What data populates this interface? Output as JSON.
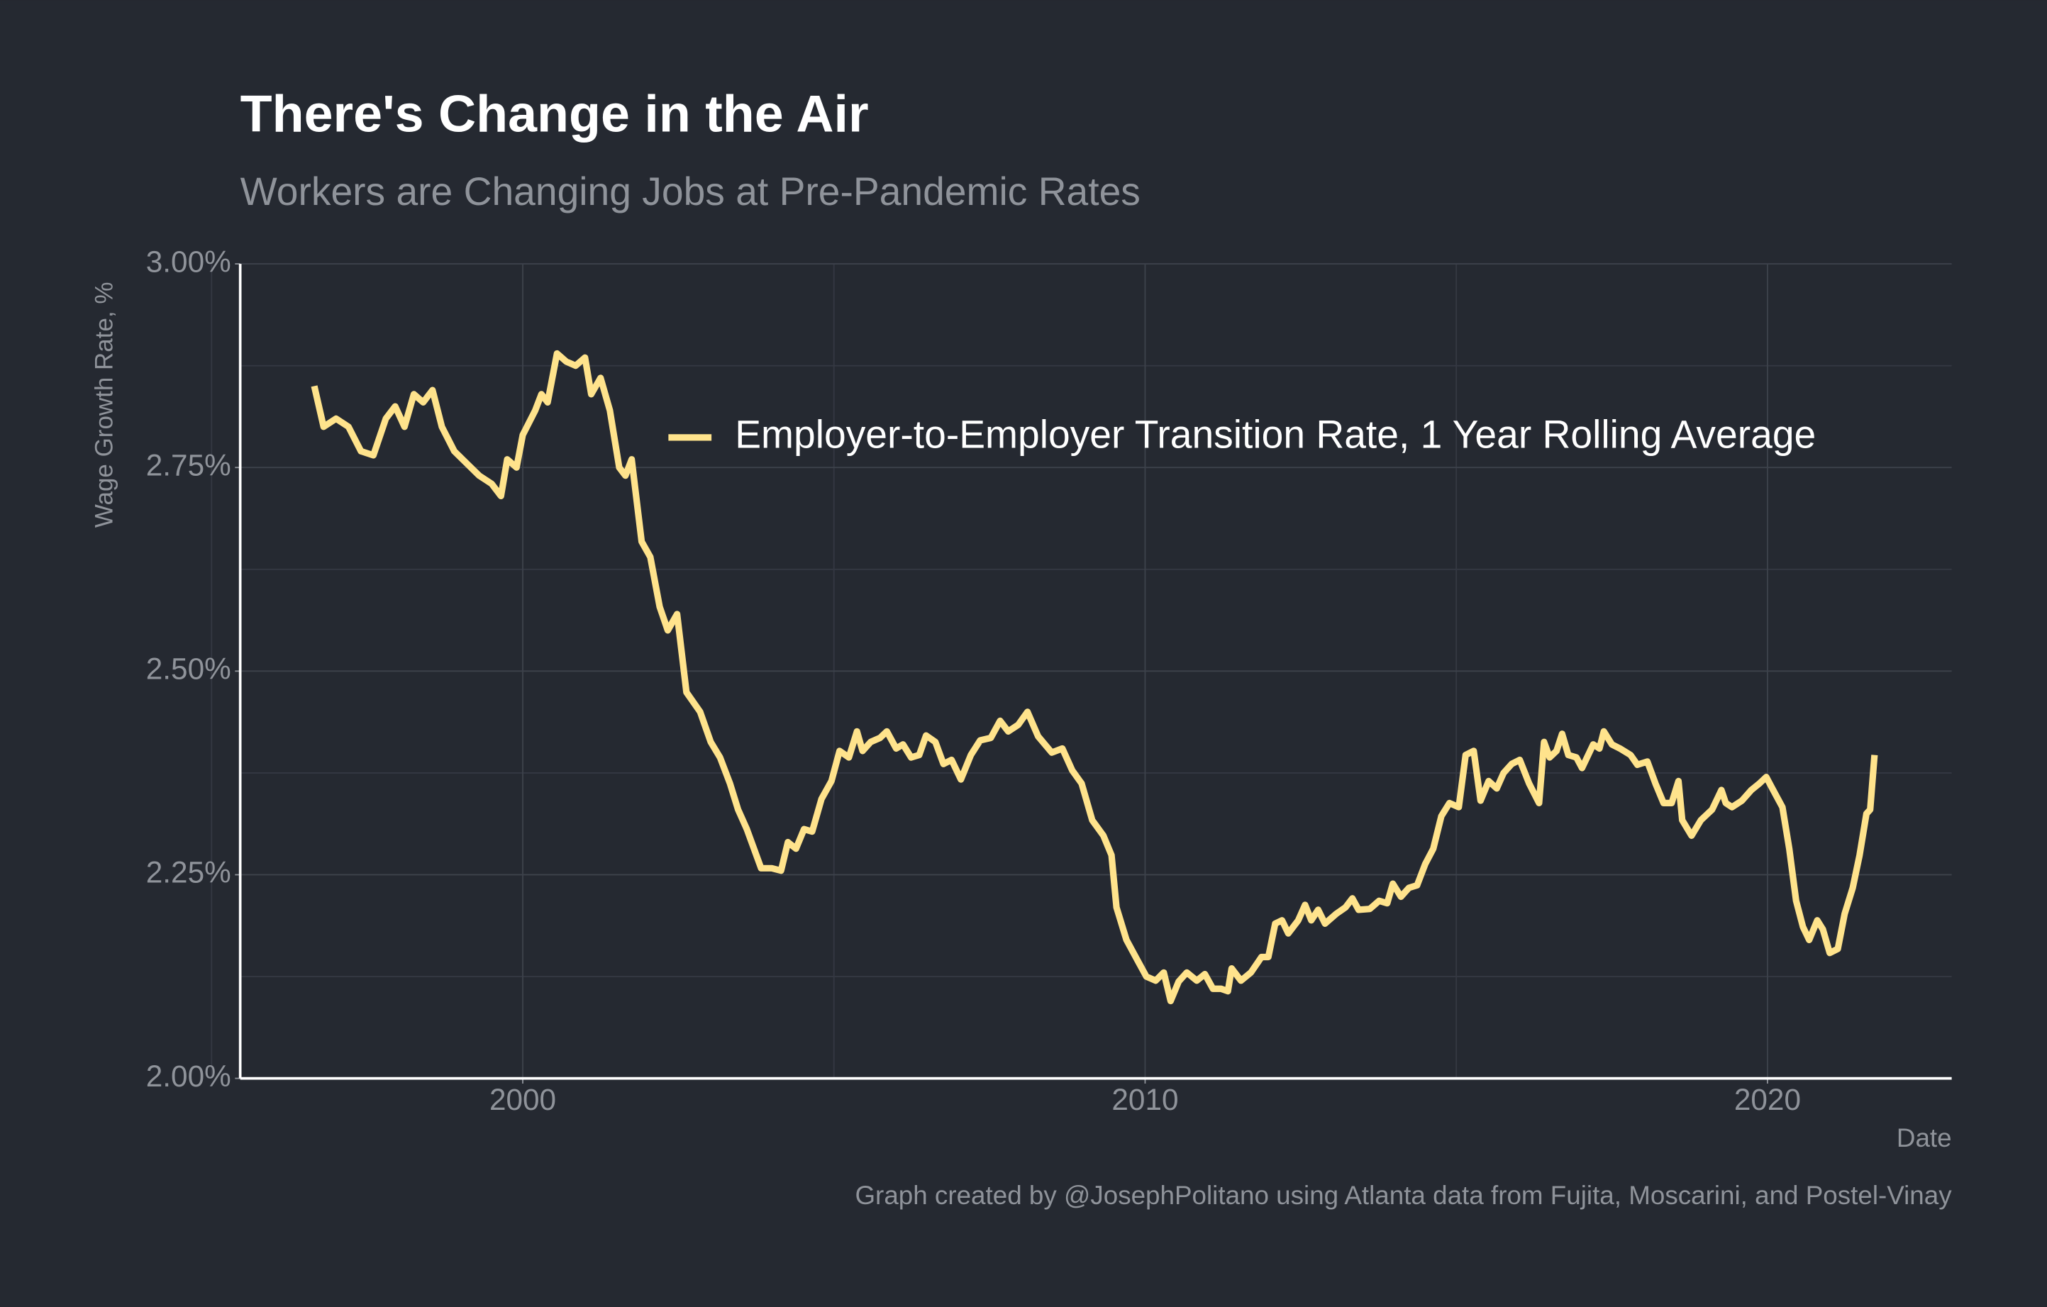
{
  "chart_data": {
    "type": "line",
    "title": "There's Change in the Air",
    "subtitle": "Workers are Changing Jobs at Pre-Pandemic Rates",
    "y_label": "Wage Growth Rate, %",
    "x_label": "Date",
    "caption": "Graph created by @JosephPolitano using Atlanta data from Fujita, Moscarini, and Postel-Vinay",
    "xlim": [
      1995.46,
      2022.96
    ],
    "xticks": [
      2000,
      2010,
      2020
    ],
    "xminor": [
      1995,
      2005,
      2015
    ],
    "ylim": [
      2,
      3
    ],
    "yticks": [
      {
        "value": 2,
        "label": "2.00%"
      },
      {
        "value": 2.25,
        "label": "2.25%"
      },
      {
        "value": 2.5,
        "label": "2.50%"
      },
      {
        "value": 2.75,
        "label": "2.75%"
      },
      {
        "value": 3,
        "label": "3.00%"
      }
    ],
    "yminor": [
      2.125,
      2.375,
      2.625,
      2.875
    ],
    "grid": true,
    "legend": "top-right",
    "x": [
      1996.65,
      1996.8,
      1997.0,
      1997.2,
      1997.4,
      1997.6,
      1997.8,
      1997.95,
      1998.1,
      1998.25,
      1998.4,
      1998.55,
      1998.7,
      1998.9,
      1999.1,
      1999.3,
      1999.5,
      1999.65,
      1999.75,
      1999.9,
      2000.0,
      2000.2,
      2000.3,
      2000.4,
      2000.55,
      2000.7,
      2000.85,
      2001.0,
      2001.1,
      2001.25,
      2001.4,
      2001.55,
      2001.65,
      2001.75,
      2001.91,
      2002.05,
      2002.2,
      2002.33,
      2002.48,
      2002.63,
      2002.85,
      2003.02,
      2003.17,
      2003.33,
      2003.46,
      2003.6,
      2003.83,
      2004.0,
      2004.15,
      2004.26,
      2004.39,
      2004.52,
      2004.65,
      2004.8,
      2004.96,
      2005.09,
      2005.24,
      2005.37,
      2005.46,
      2005.59,
      2005.74,
      2005.85,
      2006.0,
      2006.11,
      2006.24,
      2006.37,
      2006.48,
      2006.63,
      2006.76,
      2006.89,
      2007.04,
      2007.2,
      2007.35,
      2007.52,
      2007.67,
      2007.8,
      2007.96,
      2008.11,
      2008.28,
      2008.5,
      2008.67,
      2008.83,
      2008.98,
      2009.15,
      2009.33,
      2009.46,
      2009.54,
      2009.7,
      2009.87,
      2010.02,
      2010.17,
      2010.3,
      2010.41,
      2010.54,
      2010.67,
      2010.83,
      2010.96,
      2011.09,
      2011.22,
      2011.33,
      2011.39,
      2011.54,
      2011.7,
      2011.87,
      2011.98,
      2012.09,
      2012.2,
      2012.3,
      2012.46,
      2012.57,
      2012.67,
      2012.78,
      2012.89,
      2013.07,
      2013.22,
      2013.33,
      2013.43,
      2013.61,
      2013.76,
      2013.89,
      2013.98,
      2014.11,
      2014.24,
      2014.37,
      2014.5,
      2014.63,
      2014.76,
      2014.89,
      2015.04,
      2015.15,
      2015.28,
      2015.39,
      2015.52,
      2015.65,
      2015.76,
      2015.89,
      2016.02,
      2016.17,
      2016.33,
      2016.41,
      2016.5,
      2016.61,
      2016.7,
      2016.8,
      2016.93,
      2017.02,
      2017.2,
      2017.3,
      2017.37,
      2017.5,
      2017.63,
      2017.8,
      2017.91,
      2018.07,
      2018.2,
      2018.33,
      2018.46,
      2018.57,
      2018.63,
      2018.78,
      2018.93,
      2019.11,
      2019.26,
      2019.33,
      2019.43,
      2019.59,
      2019.74,
      2019.87,
      2019.98,
      2020.07,
      2020.24,
      2020.35,
      2020.46,
      2020.57,
      2020.67,
      2020.8,
      2020.89,
      2021.0,
      2021.13,
      2021.24,
      2021.37,
      2021.48,
      2021.59,
      2021.65,
      2021.72
    ],
    "series": [
      {
        "name": "Employer-to-Employer Transition Rate, 1 Year Rolling Average",
        "color": "#ffe38c",
        "values": [
          2.85,
          2.8,
          2.81,
          2.8,
          2.77,
          2.765,
          2.81,
          2.825,
          2.8,
          2.84,
          2.83,
          2.845,
          2.8,
          2.77,
          2.755,
          2.74,
          2.73,
          2.715,
          2.76,
          2.75,
          2.79,
          2.82,
          2.84,
          2.83,
          2.89,
          2.88,
          2.875,
          2.885,
          2.84,
          2.86,
          2.82,
          2.75,
          2.74,
          2.76,
          2.659,
          2.64,
          2.579,
          2.55,
          2.57,
          2.474,
          2.45,
          2.413,
          2.394,
          2.362,
          2.33,
          2.306,
          2.258,
          2.258,
          2.255,
          2.29,
          2.282,
          2.306,
          2.303,
          2.343,
          2.365,
          2.402,
          2.394,
          2.426,
          2.402,
          2.413,
          2.418,
          2.426,
          2.405,
          2.41,
          2.394,
          2.397,
          2.421,
          2.413,
          2.386,
          2.391,
          2.367,
          2.397,
          2.415,
          2.418,
          2.439,
          2.426,
          2.434,
          2.45,
          2.42,
          2.4,
          2.405,
          2.378,
          2.362,
          2.317,
          2.298,
          2.274,
          2.21,
          2.17,
          2.146,
          2.125,
          2.12,
          2.13,
          2.095,
          2.119,
          2.13,
          2.12,
          2.128,
          2.11,
          2.11,
          2.107,
          2.135,
          2.12,
          2.13,
          2.149,
          2.149,
          2.19,
          2.194,
          2.178,
          2.194,
          2.213,
          2.194,
          2.207,
          2.19,
          2.202,
          2.21,
          2.221,
          2.207,
          2.208,
          2.218,
          2.215,
          2.239,
          2.223,
          2.234,
          2.237,
          2.263,
          2.282,
          2.322,
          2.338,
          2.333,
          2.397,
          2.402,
          2.341,
          2.365,
          2.356,
          2.375,
          2.386,
          2.391,
          2.362,
          2.338,
          2.413,
          2.394,
          2.402,
          2.423,
          2.397,
          2.394,
          2.381,
          2.41,
          2.405,
          2.426,
          2.41,
          2.405,
          2.397,
          2.385,
          2.389,
          2.362,
          2.338,
          2.338,
          2.365,
          2.317,
          2.298,
          2.317,
          2.33,
          2.354,
          2.338,
          2.333,
          2.341,
          2.354,
          2.362,
          2.37,
          2.357,
          2.333,
          2.282,
          2.218,
          2.186,
          2.17,
          2.194,
          2.183,
          2.154,
          2.159,
          2.202,
          2.234,
          2.274,
          2.325,
          2.33,
          2.397
        ]
      }
    ]
  }
}
